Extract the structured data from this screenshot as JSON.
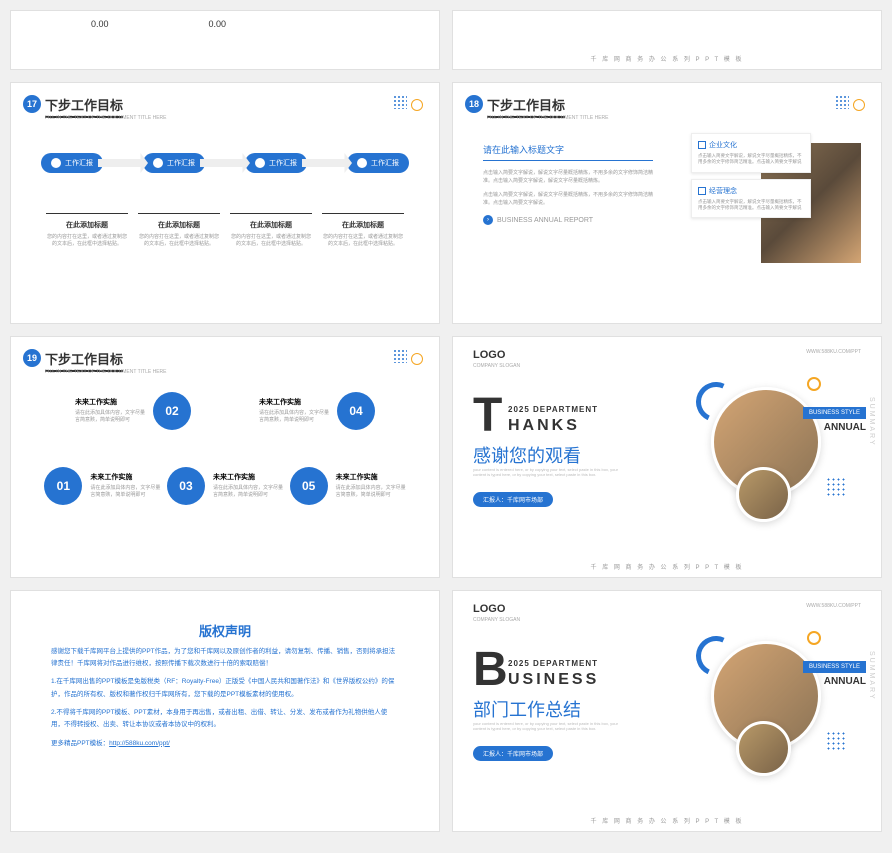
{
  "colors": {
    "primary": "#2673d1",
    "accent": "#f5a623",
    "text": "#333333",
    "muted": "#999999",
    "bg": "#ffffff"
  },
  "footer_text": "千 库 网 商 务 办 公 系 列 P P T 模 板",
  "slide_subtitle": "FILL IN THE TEXT OF THE DOCUMENT TITLE HERE",
  "top_slide": {
    "val1": "0.00",
    "val2": "0.00"
  },
  "slide17": {
    "num": "17",
    "title": "下步工作目标",
    "pills": [
      "工作汇报",
      "工作汇报",
      "工作汇报",
      "工作汇报"
    ],
    "cols": [
      {
        "h": "在此添加标题",
        "p": "您的内容打在这里，或者通过复制您的文本后，在此框中选择粘贴。"
      },
      {
        "h": "在此添加标题",
        "p": "您的内容打在这里，或者通过复制您的文本后，在此框中选择粘贴。"
      },
      {
        "h": "在此添加标题",
        "p": "您的内容打在这里，或者通过复制您的文本后，在此框中选择粘贴。"
      },
      {
        "h": "在此添加标题",
        "p": "您的内容打在这里，或者通过复制您的文本后，在此框中选择粘贴。"
      }
    ]
  },
  "slide18": {
    "num": "18",
    "title": "下步工作目标",
    "heading": "请在此输入标题文字",
    "p1": "点击输入简要文字解说，解说文字尽量概括精炼，不用多余的文字修饰简洁精准。点击输入简要文字解说，解说文字尽量概括精炼。",
    "p2": "点击输入简要文字解说，解说文字尽量概括精炼，不用多余的文字修饰简洁精准。点击输入简要文字解说。",
    "link": "BUSINESS ANNUAL REPORT",
    "cards": [
      {
        "h": "企业文化",
        "p": "点击输入简要文字解说，解说文字尽量概括精炼，不用多余的文字修饰简洁精准。点击输入简要文字解说"
      },
      {
        "h": "经营理念",
        "p": "点击输入简要文字解说，解说文字尽量概括精炼，不用多余的文字修饰简洁精准。点击输入简要文字解说"
      }
    ]
  },
  "slide19": {
    "num": "19",
    "title": "下步工作目标",
    "items": [
      {
        "n": "01",
        "h": "未来工作实施",
        "p": "请在此添加具体内容，文字尽量言简意赅，简单说明即可"
      },
      {
        "n": "02",
        "h": "未来工作实施",
        "p": "请在此添加具体内容，文字尽量言简意赅，简单说明即可"
      },
      {
        "n": "03",
        "h": "未来工作实施",
        "p": "请在此添加具体内容，文字尽量言简意赅，简单说明即可"
      },
      {
        "n": "04",
        "h": "未来工作实施",
        "p": "请在此添加具体内容，文字尽量言简意赅，简单说明即可"
      },
      {
        "n": "05",
        "h": "未来工作实施",
        "p": "请在此添加具体内容，文字尽量言简意赅，简单说明即可"
      }
    ]
  },
  "thanks": {
    "logo": "LOGO",
    "logosub": "COMPANY SLOGAN",
    "url": "WWW.588KU.COM/PPT",
    "big": "T",
    "dept": "2025 DEPARTMENT",
    "word": "HANKS",
    "cn": "感谢您的观看",
    "desc": "your content is entered here, or by copying your text, select paste in this box, your content is typed here, or by copying your text, select paste in this box.",
    "badge": "汇报人：千库网市场部",
    "tag": "BUSINESS STYLE",
    "tag2": "ANNUAL",
    "sum": "SUMMARY"
  },
  "copyright": {
    "title": "版权声明",
    "p1": "感谢您下载千库网平台上提供的PPT作品，为了您和千库网以及原创作者的利益，请勿复制、传播、销售，否则将承担法律责任！千库网将对作品进行维权，按照传播下载次数进行十倍的索取赔偿！",
    "p2": "1.在千库网出售的PPT模板是免版税类（RF：Royalty-Free）正版受《中国人民共和国著作法》和《世界版权公约》的保护，作品的所有权、版权和著作权归千库网所有，您下载的是PPT模板素材的使用权。",
    "p3": "2.不得将千库网的PPT模板、PPT素材，本身用于再出售，或者出租、出借、转让、分发、发布或者作为礼物供他人使用，不得转授权、出卖、转让本协议或者本协议中的权利。",
    "more": "更多精品PPT模板：",
    "link": "http://588ku.com/ppt/"
  },
  "business": {
    "logo": "LOGO",
    "logosub": "COMPANY SLOGAN",
    "url": "WWW.588KU.COM/PPT",
    "big": "B",
    "dept": "2025 DEPARTMENT",
    "word": "USINESS",
    "cn": "部门工作总结",
    "desc": "your content is entered here, or by copying your text, select paste in this box, your content is typed here, or by copying your text, select paste in this box.",
    "badge": "汇报人：千库网市场部",
    "tag": "BUSINESS STYLE",
    "tag2": "ANNUAL",
    "sum": "SUMMARY"
  }
}
